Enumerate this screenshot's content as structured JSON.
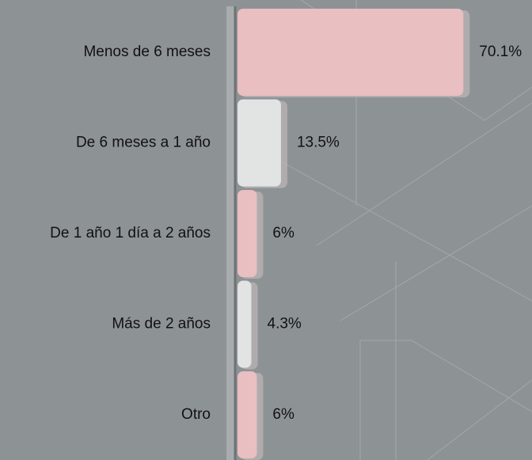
{
  "chart_data": {
    "type": "bar",
    "orientation": "horizontal",
    "categories": [
      "Menos de 6 meses",
      "De 6 meses a 1 año",
      "De 1 año 1 día a 2 años",
      "Más de 2 años",
      "Otro"
    ],
    "values": [
      70.1,
      13.5,
      6,
      4.3,
      6
    ],
    "value_labels": [
      "70.1%",
      "13.5%",
      "6%",
      "4.3%",
      "6%"
    ],
    "colors": [
      "#e9bfc1",
      "#e2e3e3",
      "#e9bfc1",
      "#e2e3e3",
      "#e9bfc1"
    ]
  }
}
